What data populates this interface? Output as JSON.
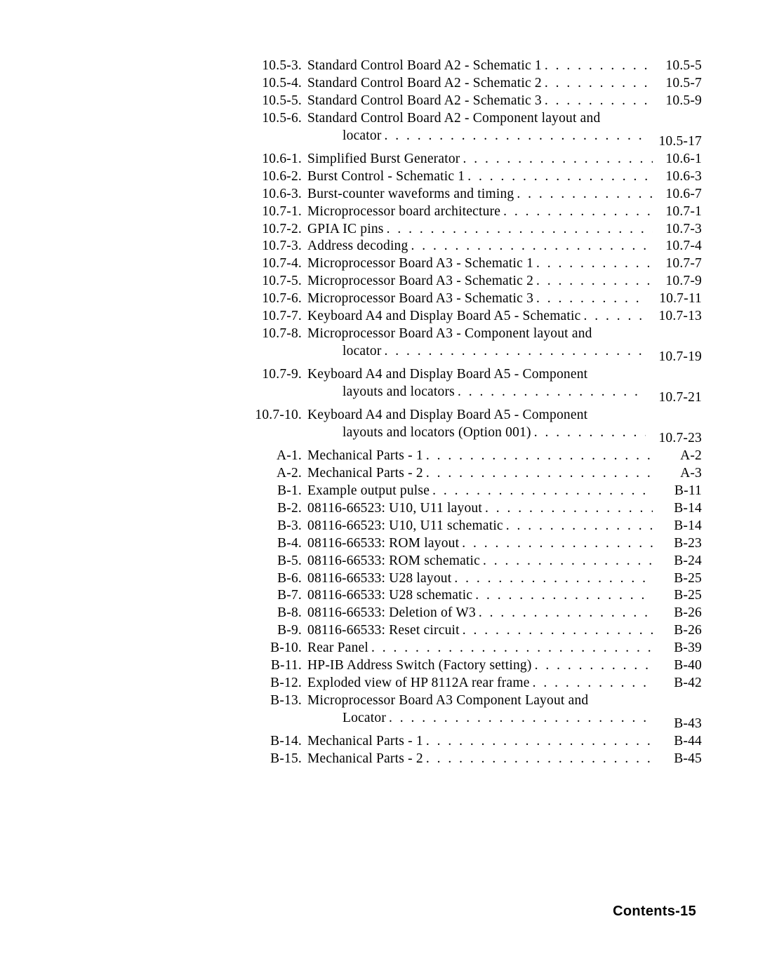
{
  "entries": [
    {
      "num": "10.5-3.",
      "title": "Standard Control Board A2 - Schematic 1",
      "page": "10.5-5",
      "indent": false,
      "dots": true
    },
    {
      "num": "10.5-4.",
      "title": "Standard Control Board A2 - Schematic 2",
      "page": "10.5-7",
      "indent": false,
      "dots": true
    },
    {
      "num": "10.5-5.",
      "title": "Standard Control Board A2 - Schematic 3",
      "page": "10.5-9",
      "indent": false,
      "dots": true
    },
    {
      "num": "10.5-6.",
      "title": "Standard Control Board A2 - Component layout and",
      "page": "",
      "indent": false,
      "dots": false
    },
    {
      "num": "",
      "title": "locator",
      "page": "10.5-17",
      "indent": true,
      "dots": true
    },
    {
      "num": "10.6-1.",
      "title": "Simplified Burst Generator",
      "page": "10.6-1",
      "indent": false,
      "dots": true
    },
    {
      "num": "10.6-2.",
      "title": "Burst Control - Schematic 1",
      "page": "10.6-3",
      "indent": false,
      "dots": true
    },
    {
      "num": "10.6-3.",
      "title": "Burst-counter waveforms and timing",
      "page": "10.6-7",
      "indent": false,
      "dots": true
    },
    {
      "num": "10.7-1.",
      "title": "Microprocessor board architecture",
      "page": "10.7-1",
      "indent": false,
      "dots": true
    },
    {
      "num": "10.7-2.",
      "title": "GPIA IC pins",
      "page": "10.7-3",
      "indent": false,
      "dots": true
    },
    {
      "num": "10.7-3.",
      "title": "Address decoding",
      "page": "10.7-4",
      "indent": false,
      "dots": true
    },
    {
      "num": "10.7-4.",
      "title": "Microprocessor Board A3 - Schematic 1",
      "page": "10.7-7",
      "indent": false,
      "dots": true
    },
    {
      "num": "10.7-5.",
      "title": "Microprocessor Board A3 - Schematic 2",
      "page": "10.7-9",
      "indent": false,
      "dots": true
    },
    {
      "num": "10.7-6.",
      "title": "Microprocessor Board A3 - Schematic 3",
      "page": "10.7-11",
      "indent": false,
      "dots": true
    },
    {
      "num": "10.7-7.",
      "title": "Keyboard A4 and Display Board A5 - Schematic",
      "page": "10.7-13",
      "indent": false,
      "dots": true,
      "shortdots": true
    },
    {
      "num": "10.7-8.",
      "title": "Microprocessor Board A3 - Component layout and",
      "page": "",
      "indent": false,
      "dots": false
    },
    {
      "num": "",
      "title": "locator",
      "page": "10.7-19",
      "indent": true,
      "dots": true
    },
    {
      "num": "10.7-9.",
      "title": "Keyboard A4 and Display Board A5 - Component",
      "page": "",
      "indent": false,
      "dots": false
    },
    {
      "num": "",
      "title": "layouts and locators",
      "page": "10.7-21",
      "indent": true,
      "dots": true
    },
    {
      "num": "10.7-10.",
      "title": "Keyboard A4 and Display Board A5 - Component",
      "page": "",
      "indent": false,
      "dots": false
    },
    {
      "num": "",
      "title": "layouts and locators (Option 001)",
      "page": "10.7-23",
      "indent": true,
      "dots": true
    },
    {
      "num": "A-1.",
      "title": "Mechanical Parts - 1",
      "page": "A-2",
      "indent": false,
      "dots": true
    },
    {
      "num": "A-2.",
      "title": "Mechanical Parts - 2",
      "page": "A-3",
      "indent": false,
      "dots": true
    },
    {
      "num": "B-1.",
      "title": "Example output pulse",
      "page": "B-11",
      "indent": false,
      "dots": true
    },
    {
      "num": "B-2.",
      "title": "08116-66523: U10, U11 layout",
      "page": "B-14",
      "indent": false,
      "dots": true
    },
    {
      "num": "B-3.",
      "title": "08116-66523: U10, U11 schematic",
      "page": "B-14",
      "indent": false,
      "dots": true
    },
    {
      "num": "B-4.",
      "title": "08116-66533: ROM layout",
      "page": "B-23",
      "indent": false,
      "dots": true
    },
    {
      "num": "B-5.",
      "title": "08116-66533: ROM schematic",
      "page": "B-24",
      "indent": false,
      "dots": true
    },
    {
      "num": "B-6.",
      "title": "08116-66533: U28 layout",
      "page": "B-25",
      "indent": false,
      "dots": true
    },
    {
      "num": "B-7.",
      "title": "08116-66533: U28 schematic",
      "page": "B-25",
      "indent": false,
      "dots": true
    },
    {
      "num": "B-8.",
      "title": "08116-66533: Deletion of W3",
      "page": "B-26",
      "indent": false,
      "dots": true
    },
    {
      "num": "B-9.",
      "title": "08116-66533: Reset circuit",
      "page": "B-26",
      "indent": false,
      "dots": true
    },
    {
      "num": "B-10.",
      "title": "Rear Panel",
      "page": "B-39",
      "indent": false,
      "dots": true
    },
    {
      "num": "B-11.",
      "title": "HP-IB Address Switch (Factory setting)",
      "page": "B-40",
      "indent": false,
      "dots": true
    },
    {
      "num": "B-12.",
      "title": "Exploded view of HP 8112A rear frame",
      "page": "B-42",
      "indent": false,
      "dots": true
    },
    {
      "num": "B-13.",
      "title": "Microprocessor Board A3 Component Layout and",
      "page": "",
      "indent": false,
      "dots": false
    },
    {
      "num": "",
      "title": "Locator",
      "page": "B-43",
      "indent": true,
      "dots": true
    },
    {
      "num": "B-14.",
      "title": "Mechanical Parts - 1",
      "page": "B-44",
      "indent": false,
      "dots": true
    },
    {
      "num": "B-15.",
      "title": "Mechanical Parts - 2",
      "page": "B-45",
      "indent": false,
      "dots": true
    }
  ],
  "footer": "Contents-15",
  "dotchar": ". . . . . . . . . . . . . . . . . . . . . . . . . . . . . . . . . . . . . . . . . . . . . . ."
}
